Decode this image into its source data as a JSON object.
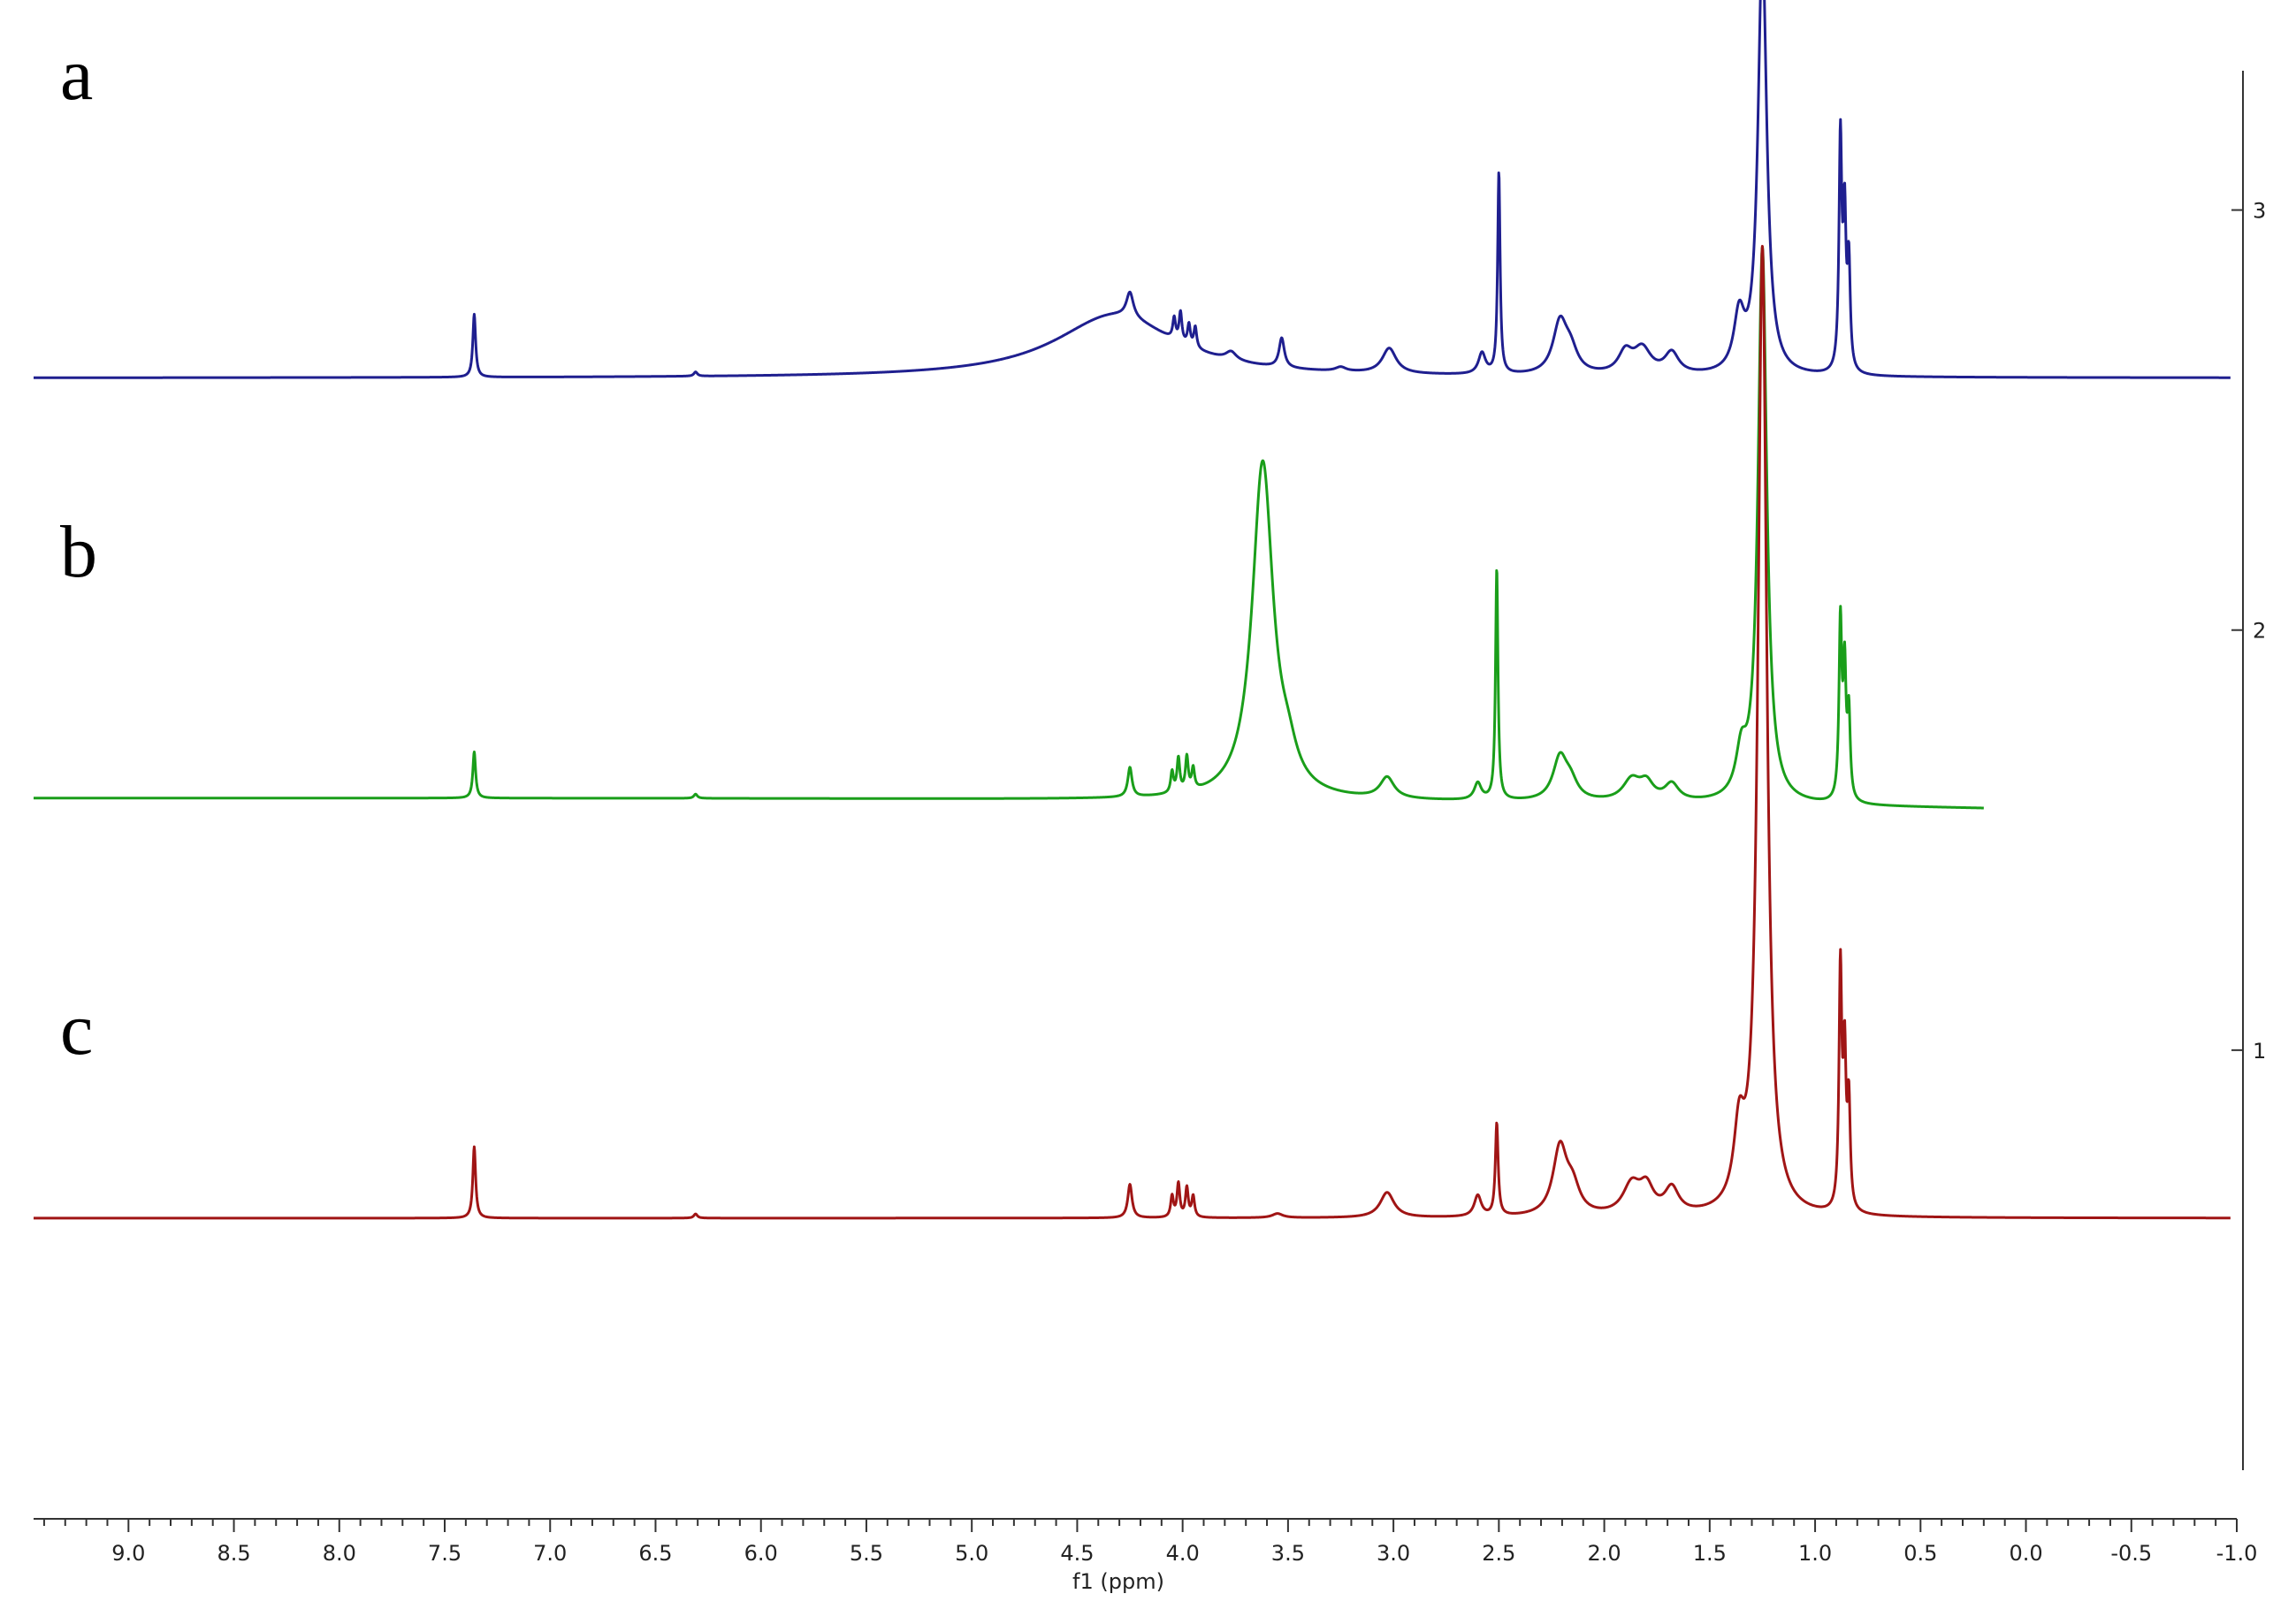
{
  "chart_data": {
    "type": "line",
    "xlabel": "f1 (ppm)",
    "ylabel": "",
    "xlim": [
      9.45,
      -1.0
    ],
    "ylim": [
      0.0,
      3.5
    ],
    "x_ticks": [
      "9.0",
      "8.5",
      "8.0",
      "7.5",
      "7.0",
      "6.5",
      "6.0",
      "5.5",
      "5.0",
      "4.5",
      "4.0",
      "3.5",
      "3.0",
      "2.5",
      "2.0",
      "1.5",
      "1.0",
      "0.5",
      "0.0",
      "-0.5",
      "-1.0"
    ],
    "y_ticks": [
      "1",
      "2",
      "3"
    ],
    "grid": false,
    "series": [
      {
        "name": "a",
        "color": "#1f1f8f",
        "baseline": 2.6,
        "x_range": [
          9.45,
          -0.97
        ],
        "peaks": [
          {
            "x": 7.36,
            "h": 0.15,
            "w": 0.008
          },
          {
            "x": 6.31,
            "h": 0.01,
            "w": 0.01
          },
          {
            "x": 4.32,
            "h": 0.15,
            "w": 0.35
          },
          {
            "x": 4.25,
            "h": 0.06,
            "w": 0.02
          },
          {
            "x": 4.04,
            "h": 0.05,
            "w": 0.008
          },
          {
            "x": 4.01,
            "h": 0.07,
            "w": 0.008
          },
          {
            "x": 3.97,
            "h": 0.05,
            "w": 0.008
          },
          {
            "x": 3.94,
            "h": 0.05,
            "w": 0.008
          },
          {
            "x": 3.77,
            "h": 0.02,
            "w": 0.03
          },
          {
            "x": 3.53,
            "h": 0.07,
            "w": 0.015
          },
          {
            "x": 3.25,
            "h": 0.01,
            "w": 0.03
          },
          {
            "x": 3.02,
            "h": 0.06,
            "w": 0.04
          },
          {
            "x": 2.58,
            "h": 0.05,
            "w": 0.02
          },
          {
            "x": 2.5,
            "h": 0.48,
            "w": 0.007
          },
          {
            "x": 2.21,
            "h": 0.12,
            "w": 0.04
          },
          {
            "x": 2.16,
            "h": 0.05,
            "w": 0.04
          },
          {
            "x": 1.9,
            "h": 0.05,
            "w": 0.04
          },
          {
            "x": 1.82,
            "h": 0.06,
            "w": 0.05
          },
          {
            "x": 1.68,
            "h": 0.05,
            "w": 0.04
          },
          {
            "x": 1.36,
            "h": 0.13,
            "w": 0.03
          },
          {
            "x": 1.25,
            "h": 1.02,
            "w": 0.025
          },
          {
            "x": 0.88,
            "h": 0.55,
            "w": 0.008
          },
          {
            "x": 0.86,
            "h": 0.35,
            "w": 0.008
          },
          {
            "x": 0.84,
            "h": 0.25,
            "w": 0.008
          }
        ]
      },
      {
        "name": "b",
        "color": "#1a9e1a",
        "baseline": 1.6,
        "x_range": [
          9.45,
          0.2
        ],
        "baseline_end": 1.575,
        "peaks": [
          {
            "x": 7.36,
            "h": 0.11,
            "w": 0.008
          },
          {
            "x": 6.31,
            "h": 0.01,
            "w": 0.01
          },
          {
            "x": 4.25,
            "h": 0.07,
            "w": 0.012
          },
          {
            "x": 4.05,
            "h": 0.05,
            "w": 0.008
          },
          {
            "x": 4.02,
            "h": 0.08,
            "w": 0.008
          },
          {
            "x": 3.98,
            "h": 0.08,
            "w": 0.008
          },
          {
            "x": 3.95,
            "h": 0.05,
            "w": 0.008
          },
          {
            "x": 3.62,
            "h": 0.8,
            "w": 0.06
          },
          {
            "x": 3.5,
            "h": 0.06,
            "w": 0.05
          },
          {
            "x": 3.03,
            "h": 0.05,
            "w": 0.04
          },
          {
            "x": 2.6,
            "h": 0.04,
            "w": 0.02
          },
          {
            "x": 2.51,
            "h": 0.55,
            "w": 0.007
          },
          {
            "x": 2.21,
            "h": 0.1,
            "w": 0.04
          },
          {
            "x": 2.16,
            "h": 0.04,
            "w": 0.04
          },
          {
            "x": 1.87,
            "h": 0.05,
            "w": 0.05
          },
          {
            "x": 1.8,
            "h": 0.04,
            "w": 0.04
          },
          {
            "x": 1.68,
            "h": 0.04,
            "w": 0.04
          },
          {
            "x": 1.35,
            "h": 0.1,
            "w": 0.03
          },
          {
            "x": 1.25,
            "h": 1.32,
            "w": 0.025
          },
          {
            "x": 0.88,
            "h": 0.42,
            "w": 0.008
          },
          {
            "x": 0.86,
            "h": 0.3,
            "w": 0.008
          },
          {
            "x": 0.84,
            "h": 0.2,
            "w": 0.008
          }
        ]
      },
      {
        "name": "c",
        "color": "#a01515",
        "baseline": 0.6,
        "x_range": [
          9.45,
          -0.97
        ],
        "peaks": [
          {
            "x": 7.36,
            "h": 0.17,
            "w": 0.008
          },
          {
            "x": 6.31,
            "h": 0.01,
            "w": 0.01
          },
          {
            "x": 4.25,
            "h": 0.08,
            "w": 0.012
          },
          {
            "x": 4.05,
            "h": 0.05,
            "w": 0.008
          },
          {
            "x": 4.02,
            "h": 0.08,
            "w": 0.008
          },
          {
            "x": 3.98,
            "h": 0.07,
            "w": 0.008
          },
          {
            "x": 3.95,
            "h": 0.05,
            "w": 0.008
          },
          {
            "x": 3.55,
            "h": 0.01,
            "w": 0.03
          },
          {
            "x": 3.03,
            "h": 0.06,
            "w": 0.04
          },
          {
            "x": 2.6,
            "h": 0.05,
            "w": 0.02
          },
          {
            "x": 2.51,
            "h": 0.22,
            "w": 0.008
          },
          {
            "x": 2.21,
            "h": 0.16,
            "w": 0.04
          },
          {
            "x": 2.15,
            "h": 0.06,
            "w": 0.04
          },
          {
            "x": 1.87,
            "h": 0.07,
            "w": 0.05
          },
          {
            "x": 1.8,
            "h": 0.06,
            "w": 0.04
          },
          {
            "x": 1.68,
            "h": 0.06,
            "w": 0.04
          },
          {
            "x": 1.36,
            "h": 0.17,
            "w": 0.03
          },
          {
            "x": 1.25,
            "h": 2.3,
            "w": 0.025
          },
          {
            "x": 0.88,
            "h": 0.57,
            "w": 0.008
          },
          {
            "x": 0.86,
            "h": 0.35,
            "w": 0.008
          },
          {
            "x": 0.84,
            "h": 0.25,
            "w": 0.008
          }
        ]
      }
    ]
  }
}
